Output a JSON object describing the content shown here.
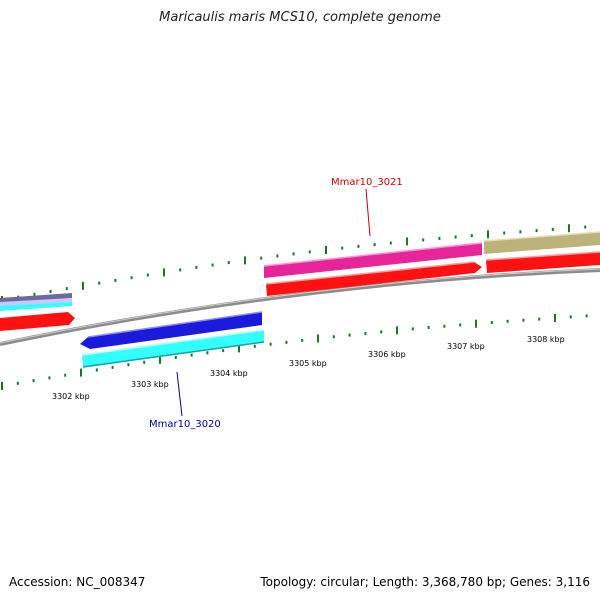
{
  "title": "Maricaulis maris MCS10, complete genome",
  "footer": {
    "accession": "Accession: NC_008347",
    "summary": "Topology: circular; Length: 3,368,780 bp; Genes: 3,116"
  },
  "scale_labels": [
    "3302 kbp",
    "3303 kbp",
    "3304 kbp",
    "3305 kbp",
    "3306 kbp",
    "3307 kbp",
    "3308 kbp"
  ],
  "gene_labels": {
    "upper": {
      "text": "Mmar10_3021",
      "color": "#cc0000"
    },
    "lower": {
      "text": "Mmar10_3020",
      "color": "#000099"
    }
  },
  "colors": {
    "backbone": "#8c8c8c",
    "tick": "#1a7a1a",
    "magenta": "#e8249b",
    "khaki": "#bdb27a",
    "red": "#ff1111",
    "blue": "#1a1add",
    "cyan": "#33ffff",
    "slate": "#6a6aa0"
  }
}
